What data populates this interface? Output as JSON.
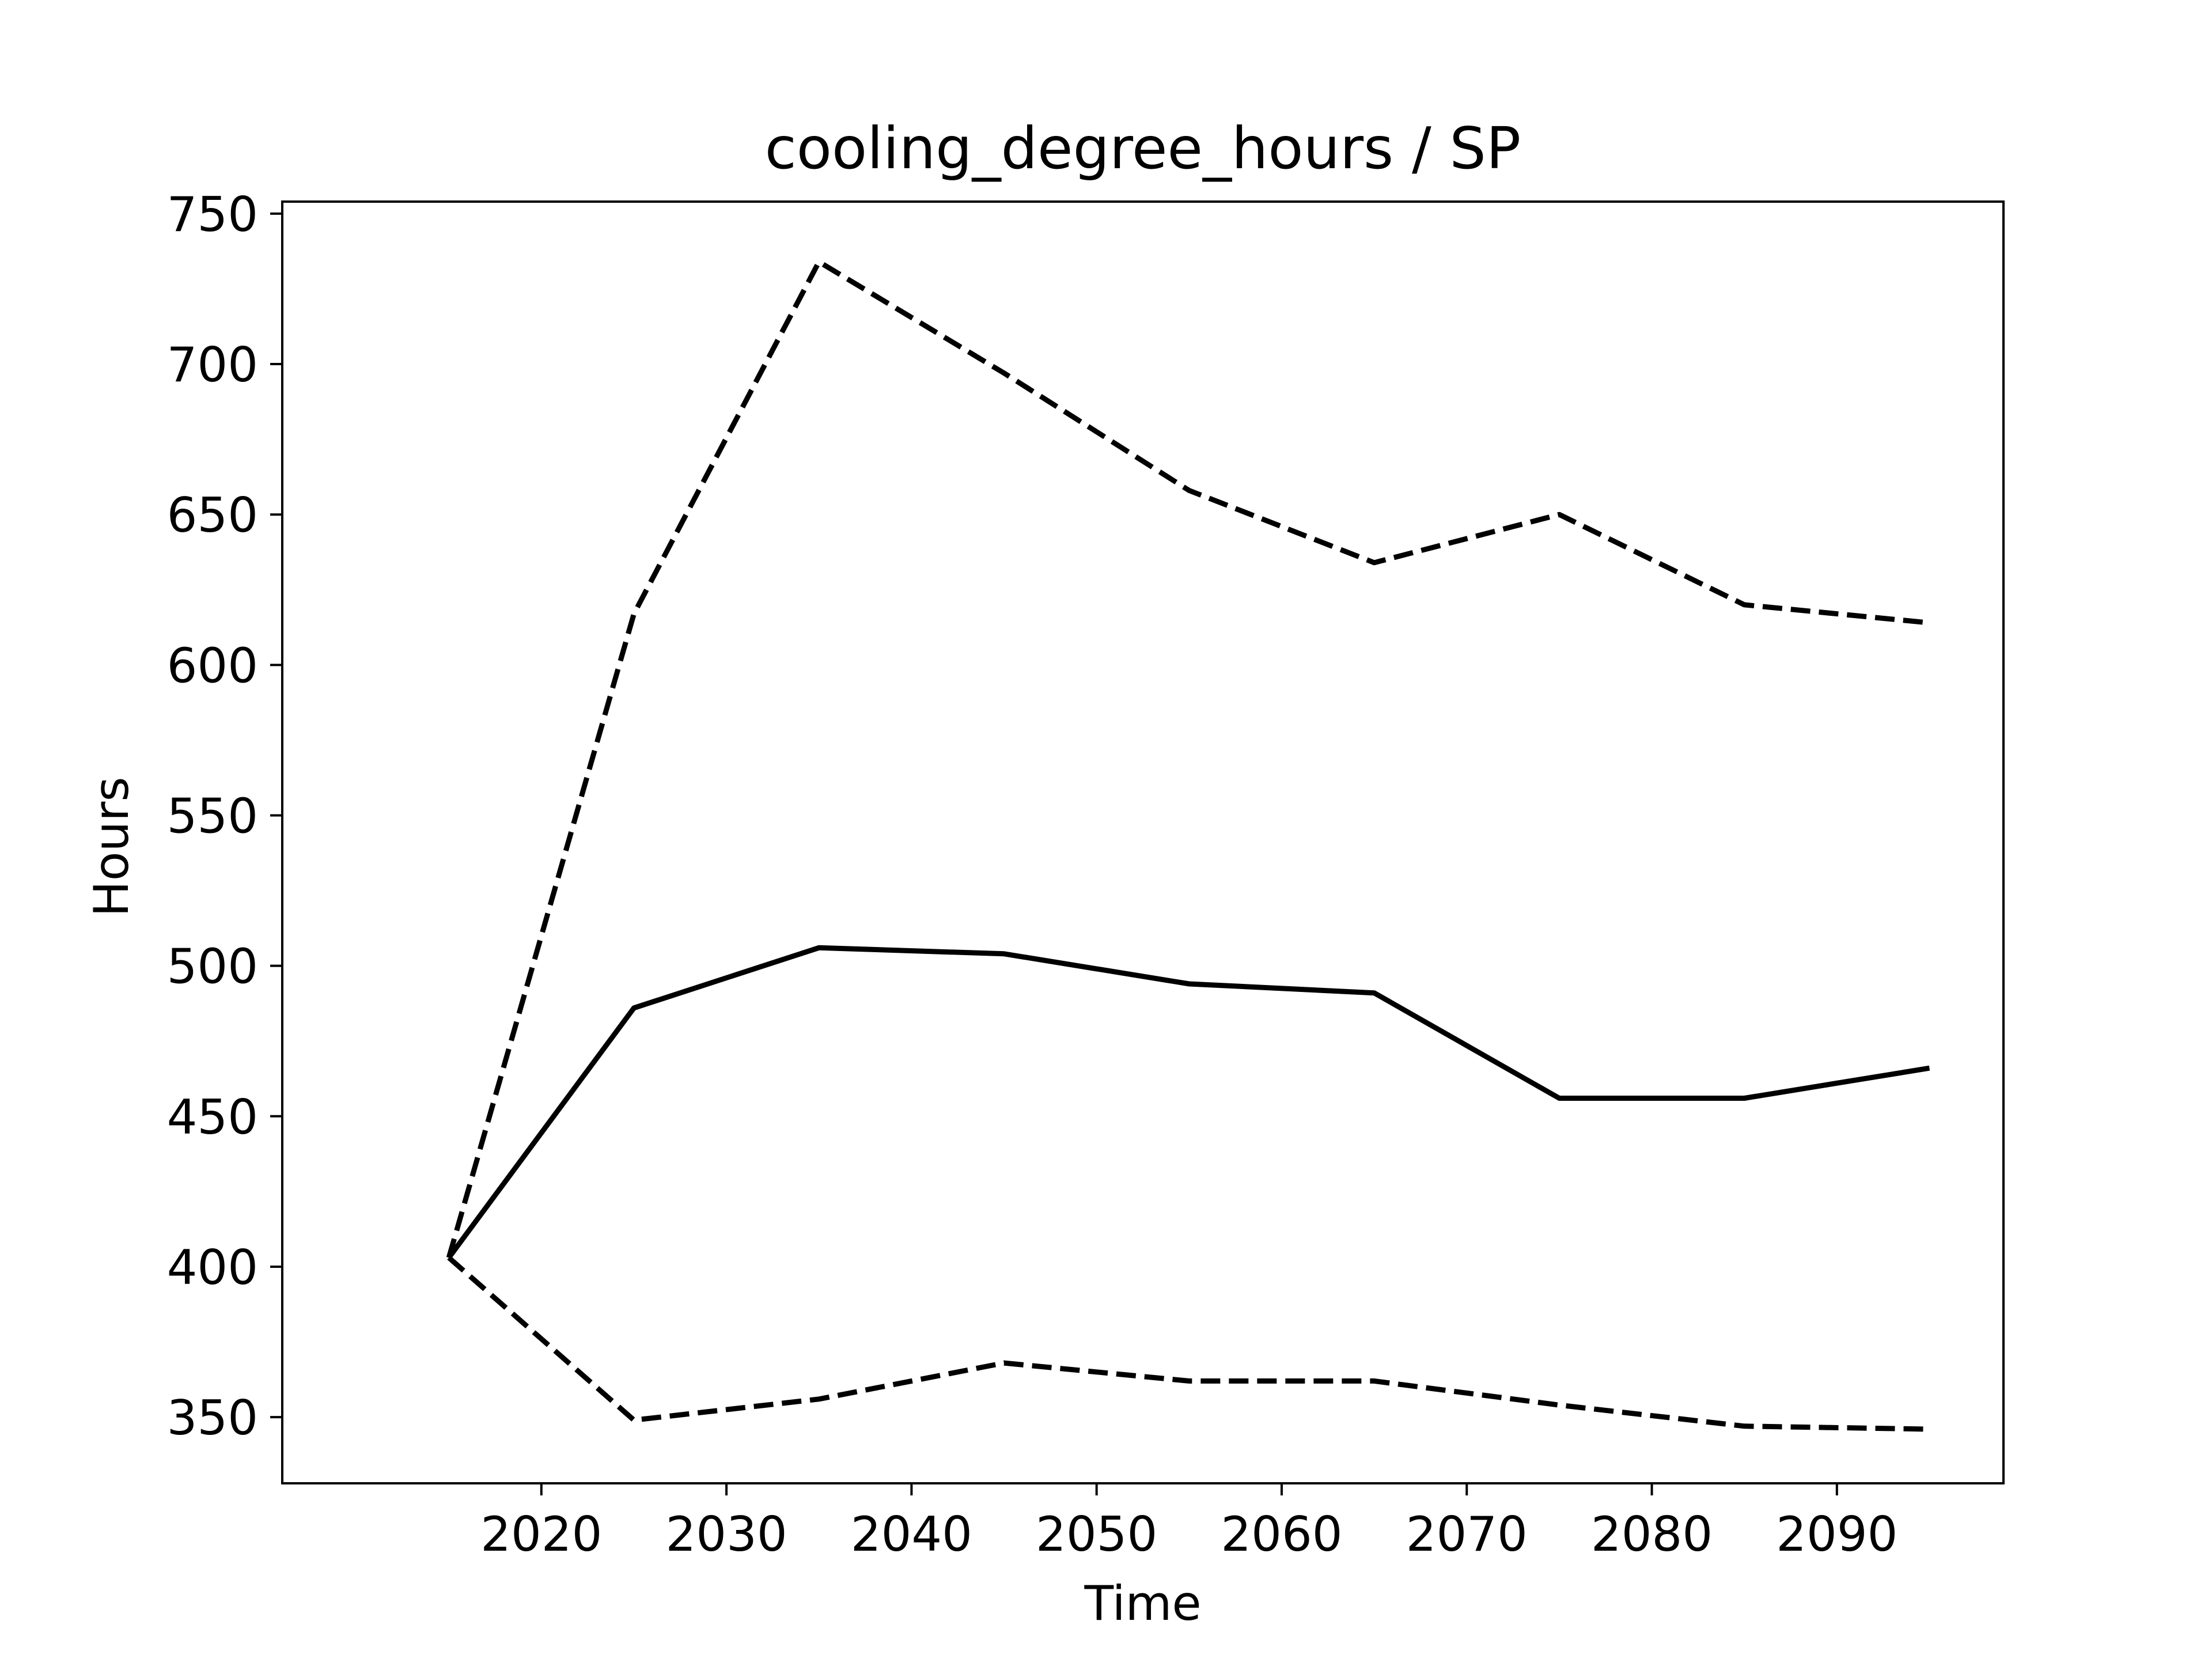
{
  "chart_data": {
    "type": "line",
    "title": "cooling_degree_hours / SP",
    "xlabel": "Time",
    "ylabel": "Hours",
    "x": [
      2015,
      2025,
      2035,
      2045,
      2055,
      2065,
      2075,
      2085,
      2095
    ],
    "series": [
      {
        "style": "solid",
        "values": [
          403,
          486,
          506,
          504,
          494,
          491,
          456,
          456,
          466
        ]
      },
      {
        "style": "dashed",
        "values": [
          403,
          617,
          734,
          697,
          658,
          634,
          650,
          620,
          614
        ]
      },
      {
        "style": "dashed",
        "values": [
          403,
          349,
          356,
          368,
          362,
          362,
          354,
          347,
          346
        ]
      }
    ],
    "xlim": [
      2006,
      2099
    ],
    "ylim": [
      328,
      754
    ],
    "xticks": [
      2020,
      2030,
      2040,
      2050,
      2060,
      2070,
      2080,
      2090
    ],
    "yticks": [
      350,
      400,
      450,
      500,
      550,
      600,
      650,
      700,
      750
    ],
    "grid": false,
    "line_color": "#000000"
  }
}
